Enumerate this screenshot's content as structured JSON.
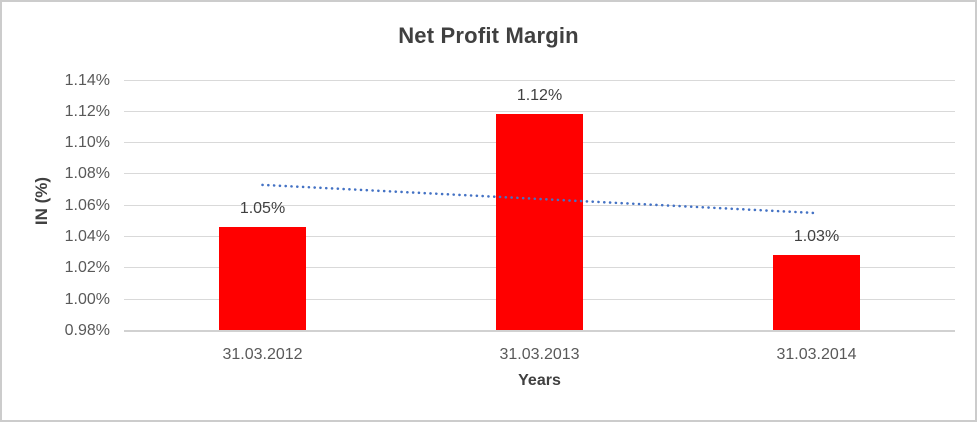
{
  "frame": {
    "background": "#FFFFFF",
    "border_color": "#CCCCCC"
  },
  "chart_data": {
    "type": "bar",
    "title": "Net Profit Margin",
    "xlabel": "Years",
    "ylabel": "IN (%)",
    "categories": [
      "31.03.2012",
      "31.03.2013",
      "31.03.2014"
    ],
    "values": [
      1.046,
      1.118,
      1.028
    ],
    "data_labels": [
      "1.05%",
      "1.12%",
      "1.03%"
    ],
    "ylim": [
      0.98,
      1.14
    ],
    "ytick_step": 0.02,
    "ytick_labels": [
      "1.14%",
      "1.12%",
      "1.10%",
      "1.08%",
      "1.06%",
      "1.04%",
      "1.02%",
      "1.00%",
      "0.98%"
    ],
    "grid": true,
    "legend": "none",
    "bar_color": "#FF0000",
    "gridline_color": "#D9D9D9",
    "trendline": {
      "type": "linear",
      "style": "dotted",
      "color": "#4472C4"
    },
    "text_colors": {
      "title": "#404040",
      "tick_labels": "#595959",
      "axis_titles": "#404040",
      "data_labels": "#404040"
    }
  }
}
